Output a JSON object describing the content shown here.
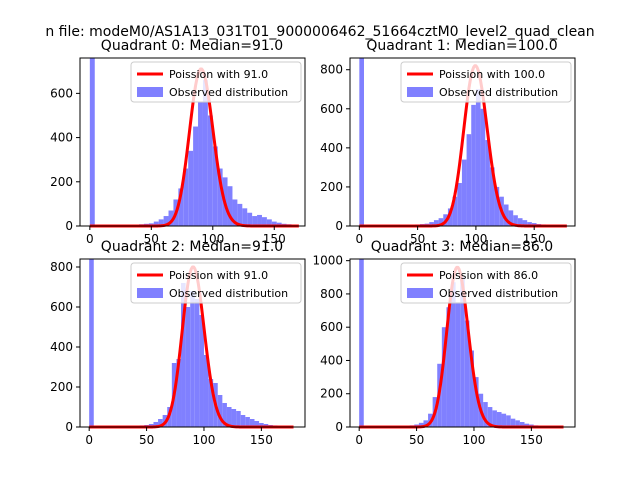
{
  "figure": {
    "suptitle": "n file: modeM0/AS1A13_031T01_9000006462_51664cztM0_level2_quad_clean"
  },
  "colors": {
    "hist_fill": "#8080ff",
    "poisson_line": "#ff0000",
    "frame": "#000000",
    "background": "#ffffff"
  },
  "chart_data": [
    {
      "type": "bar",
      "title": "Quadrant 0: Median=91.0",
      "xlim": [
        -8,
        175
      ],
      "ylim": [
        0,
        760
      ],
      "xticks": [
        0,
        50,
        100,
        150
      ],
      "yticks": [
        0,
        200,
        400,
        600
      ],
      "grid": false,
      "legend_position": "top-right",
      "bin_width": 4,
      "bins": [
        {
          "x": 0,
          "y": 760
        },
        {
          "x": 40,
          "y": 8
        },
        {
          "x": 44,
          "y": 10
        },
        {
          "x": 48,
          "y": 12
        },
        {
          "x": 52,
          "y": 20
        },
        {
          "x": 56,
          "y": 30
        },
        {
          "x": 60,
          "y": 45
        },
        {
          "x": 64,
          "y": 70
        },
        {
          "x": 68,
          "y": 120
        },
        {
          "x": 72,
          "y": 170
        },
        {
          "x": 76,
          "y": 260
        },
        {
          "x": 80,
          "y": 340
        },
        {
          "x": 84,
          "y": 450
        },
        {
          "x": 88,
          "y": 560
        },
        {
          "x": 92,
          "y": 660
        },
        {
          "x": 96,
          "y": 500
        },
        {
          "x": 100,
          "y": 360
        },
        {
          "x": 104,
          "y": 260
        },
        {
          "x": 108,
          "y": 220
        },
        {
          "x": 112,
          "y": 180
        },
        {
          "x": 116,
          "y": 120
        },
        {
          "x": 120,
          "y": 100
        },
        {
          "x": 124,
          "y": 80
        },
        {
          "x": 128,
          "y": 60
        },
        {
          "x": 132,
          "y": 45
        },
        {
          "x": 136,
          "y": 50
        },
        {
          "x": 140,
          "y": 40
        },
        {
          "x": 144,
          "y": 30
        },
        {
          "x": 148,
          "y": 20
        },
        {
          "x": 152,
          "y": 15
        },
        {
          "x": 156,
          "y": 10
        },
        {
          "x": 160,
          "y": 8
        },
        {
          "x": 164,
          "y": 5
        }
      ],
      "series": [
        {
          "name": "Poission with 91.0",
          "type": "line",
          "lambda": 91.0,
          "amplitude": 710,
          "x_range": [
            0,
            170
          ]
        },
        {
          "name": "Observed distribution",
          "type": "bar"
        }
      ]
    },
    {
      "type": "bar",
      "title": "Quadrant 1: Median=100.0",
      "xlim": [
        -8,
        185
      ],
      "ylim": [
        0,
        860
      ],
      "xticks": [
        0,
        50,
        100,
        150
      ],
      "yticks": [
        0,
        200,
        400,
        600,
        800
      ],
      "grid": false,
      "legend_position": "top-right",
      "bin_width": 4,
      "bins": [
        {
          "x": 0,
          "y": 860
        },
        {
          "x": 48,
          "y": 8
        },
        {
          "x": 52,
          "y": 10
        },
        {
          "x": 56,
          "y": 12
        },
        {
          "x": 60,
          "y": 20
        },
        {
          "x": 64,
          "y": 30
        },
        {
          "x": 68,
          "y": 40
        },
        {
          "x": 72,
          "y": 60
        },
        {
          "x": 76,
          "y": 90
        },
        {
          "x": 80,
          "y": 150
        },
        {
          "x": 84,
          "y": 220
        },
        {
          "x": 88,
          "y": 340
        },
        {
          "x": 92,
          "y": 470
        },
        {
          "x": 96,
          "y": 620
        },
        {
          "x": 100,
          "y": 700
        },
        {
          "x": 104,
          "y": 600
        },
        {
          "x": 108,
          "y": 440
        },
        {
          "x": 112,
          "y": 300
        },
        {
          "x": 116,
          "y": 200
        },
        {
          "x": 120,
          "y": 150
        },
        {
          "x": 124,
          "y": 110
        },
        {
          "x": 128,
          "y": 80
        },
        {
          "x": 132,
          "y": 55
        },
        {
          "x": 136,
          "y": 40
        },
        {
          "x": 140,
          "y": 30
        },
        {
          "x": 144,
          "y": 20
        },
        {
          "x": 148,
          "y": 15
        },
        {
          "x": 152,
          "y": 10
        },
        {
          "x": 156,
          "y": 8
        },
        {
          "x": 160,
          "y": 6
        },
        {
          "x": 164,
          "y": 5
        }
      ],
      "series": [
        {
          "name": "Poission with 100.0",
          "type": "line",
          "lambda": 100.0,
          "amplitude": 820,
          "x_range": [
            0,
            178
          ]
        },
        {
          "name": "Observed distribution",
          "type": "bar"
        }
      ]
    },
    {
      "type": "bar",
      "title": "Quadrant 2: Median=91.0",
      "xlim": [
        -8,
        188
      ],
      "ylim": [
        0,
        840
      ],
      "xticks": [
        0,
        50,
        100,
        150
      ],
      "yticks": [
        0,
        200,
        400,
        600,
        800
      ],
      "grid": false,
      "legend_position": "top-right",
      "bin_width": 4,
      "bins": [
        {
          "x": 0,
          "y": 840
        },
        {
          "x": 44,
          "y": 8
        },
        {
          "x": 48,
          "y": 10
        },
        {
          "x": 52,
          "y": 15
        },
        {
          "x": 56,
          "y": 25
        },
        {
          "x": 60,
          "y": 40
        },
        {
          "x": 64,
          "y": 60
        },
        {
          "x": 68,
          "y": 100
        },
        {
          "x": 72,
          "y": 320
        },
        {
          "x": 76,
          "y": 340
        },
        {
          "x": 80,
          "y": 720
        },
        {
          "x": 84,
          "y": 600
        },
        {
          "x": 88,
          "y": 680
        },
        {
          "x": 92,
          "y": 640
        },
        {
          "x": 96,
          "y": 560
        },
        {
          "x": 100,
          "y": 360
        },
        {
          "x": 104,
          "y": 240
        },
        {
          "x": 108,
          "y": 220
        },
        {
          "x": 112,
          "y": 160
        },
        {
          "x": 116,
          "y": 120
        },
        {
          "x": 120,
          "y": 100
        },
        {
          "x": 124,
          "y": 90
        },
        {
          "x": 128,
          "y": 80
        },
        {
          "x": 132,
          "y": 60
        },
        {
          "x": 136,
          "y": 50
        },
        {
          "x": 140,
          "y": 40
        },
        {
          "x": 144,
          "y": 30
        },
        {
          "x": 148,
          "y": 20
        },
        {
          "x": 152,
          "y": 15
        },
        {
          "x": 156,
          "y": 10
        },
        {
          "x": 160,
          "y": 8
        }
      ],
      "series": [
        {
          "name": "Poission with 91.0",
          "type": "line",
          "lambda": 91.0,
          "amplitude": 800,
          "x_range": [
            0,
            178
          ]
        },
        {
          "name": "Observed distribution",
          "type": "bar"
        }
      ]
    },
    {
      "type": "bar",
      "title": "Quadrant 3: Median=86.0",
      "xlim": [
        -8,
        188
      ],
      "ylim": [
        0,
        1010
      ],
      "xticks": [
        0,
        50,
        100,
        150
      ],
      "yticks": [
        0,
        200,
        400,
        600,
        800,
        1000
      ],
      "grid": false,
      "legend_position": "top-right",
      "bin_width": 4,
      "bins": [
        {
          "x": 0,
          "y": 1010
        },
        {
          "x": 40,
          "y": 8
        },
        {
          "x": 44,
          "y": 10
        },
        {
          "x": 48,
          "y": 15
        },
        {
          "x": 52,
          "y": 25
        },
        {
          "x": 56,
          "y": 40
        },
        {
          "x": 60,
          "y": 80
        },
        {
          "x": 64,
          "y": 180
        },
        {
          "x": 68,
          "y": 380
        },
        {
          "x": 72,
          "y": 600
        },
        {
          "x": 76,
          "y": 720
        },
        {
          "x": 80,
          "y": 870
        },
        {
          "x": 84,
          "y": 750
        },
        {
          "x": 88,
          "y": 900
        },
        {
          "x": 92,
          "y": 640
        },
        {
          "x": 96,
          "y": 460
        },
        {
          "x": 100,
          "y": 300
        },
        {
          "x": 104,
          "y": 200
        },
        {
          "x": 108,
          "y": 150
        },
        {
          "x": 112,
          "y": 120
        },
        {
          "x": 116,
          "y": 100
        },
        {
          "x": 120,
          "y": 90
        },
        {
          "x": 124,
          "y": 80
        },
        {
          "x": 128,
          "y": 70
        },
        {
          "x": 132,
          "y": 50
        },
        {
          "x": 136,
          "y": 40
        },
        {
          "x": 140,
          "y": 30
        },
        {
          "x": 144,
          "y": 20
        },
        {
          "x": 148,
          "y": 15
        },
        {
          "x": 152,
          "y": 10
        },
        {
          "x": 156,
          "y": 8
        }
      ],
      "series": [
        {
          "name": "Poission with 86.0",
          "type": "line",
          "lambda": 86.0,
          "amplitude": 960,
          "x_range": [
            0,
            178
          ]
        },
        {
          "name": "Observed distribution",
          "type": "bar"
        }
      ]
    }
  ]
}
